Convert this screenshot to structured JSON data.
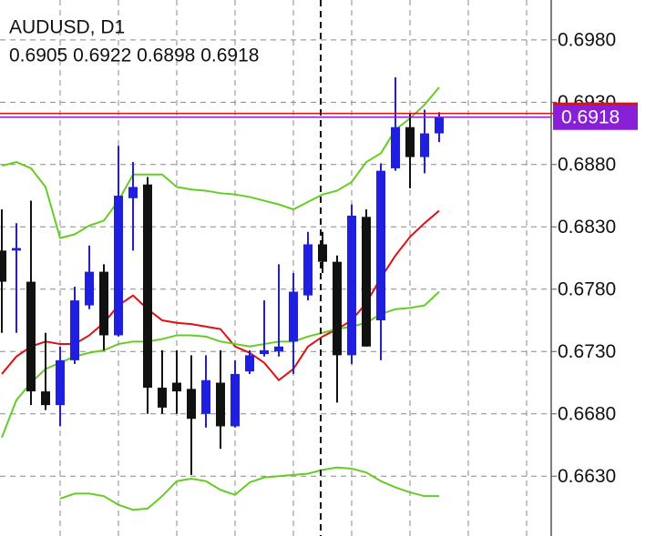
{
  "chart_data": {
    "type": "candlestick",
    "title": "AUDUSD, D1",
    "subtitle": "0.6905 0.6922 0.6898 0.6918",
    "ylim": [
      0.6582,
      0.7012
    ],
    "yticks": [
      {
        "value": 0.663,
        "label": "0.6630"
      },
      {
        "value": 0.668,
        "label": "0.6680"
      },
      {
        "value": 0.673,
        "label": "0.6730"
      },
      {
        "value": 0.678,
        "label": "0.6780"
      },
      {
        "value": 0.683,
        "label": "0.6830"
      },
      {
        "value": 0.688,
        "label": "0.6880"
      },
      {
        "value": 0.693,
        "label": "0.6930"
      },
      {
        "value": 0.698,
        "label": "0.6980"
      }
    ],
    "grid": true,
    "up_color": "#1f1fe0",
    "down_color": "#111111",
    "last_price": 0.6918,
    "last_price_color": "#8a1fd8",
    "ask_price": 0.6921,
    "ask_color": "#e01010",
    "open": [
      0.6811,
      0.6811,
      0.6786,
      0.6698,
      0.6687,
      0.6723,
      0.6767,
      0.6794,
      0.6743,
      0.6853,
      0.6864,
      0.6701,
      0.6705,
      0.67,
      0.668,
      0.6705,
      0.667,
      0.6714,
      0.6728,
      0.673,
      0.6738,
      0.6775,
      0.6816,
      0.6802,
      0.6727,
      0.6838,
      0.6755,
      0.6877,
      0.691,
      0.6886,
      0.6905
    ],
    "high": [
      0.6844,
      0.6833,
      0.6851,
      0.6745,
      0.6734,
      0.6782,
      0.6815,
      0.68,
      0.6895,
      0.6882,
      0.687,
      0.6731,
      0.6731,
      0.6727,
      0.6727,
      0.6731,
      0.6723,
      0.6731,
      0.6771,
      0.68,
      0.6793,
      0.6826,
      0.6826,
      0.6807,
      0.6848,
      0.6844,
      0.6881,
      0.695,
      0.6921,
      0.6924,
      0.6922
    ],
    "low": [
      0.6745,
      0.6745,
      0.6687,
      0.6683,
      0.667,
      0.672,
      0.6764,
      0.6731,
      0.6742,
      0.6811,
      0.668,
      0.668,
      0.668,
      0.6631,
      0.6669,
      0.6652,
      0.6669,
      0.6712,
      0.6726,
      0.6726,
      0.6712,
      0.6771,
      0.6793,
      0.6689,
      0.672,
      0.6734,
      0.6723,
      0.6875,
      0.6861,
      0.6873,
      0.6898
    ],
    "close": [
      0.6786,
      0.6813,
      0.6698,
      0.6687,
      0.6723,
      0.6771,
      0.6794,
      0.6743,
      0.6855,
      0.6862,
      0.6701,
      0.6685,
      0.6698,
      0.6676,
      0.6707,
      0.667,
      0.6712,
      0.6727,
      0.6731,
      0.6734,
      0.6778,
      0.6816,
      0.6802,
      0.6727,
      0.6839,
      0.6734,
      0.6875,
      0.691,
      0.6886,
      0.6905,
      0.6918
    ],
    "lines": [
      {
        "color": "#66cc22",
        "values": [
          0.6879,
          0.6882,
          0.6877,
          0.6862,
          0.6821,
          0.6824,
          0.6831,
          0.6835,
          0.6851,
          0.6872,
          0.6872,
          0.6872,
          0.6862,
          0.686,
          0.6859,
          0.6857,
          0.6856,
          0.6854,
          0.6851,
          0.6848,
          0.6844,
          0.685,
          0.6856,
          0.6859,
          0.6866,
          0.6882,
          0.6889,
          0.6908,
          0.6917,
          0.6928,
          0.6942
        ]
      },
      {
        "color": "#dd1111",
        "values": [
          0.6712,
          0.6726,
          0.6734,
          0.6738,
          0.6736,
          0.6736,
          0.6743,
          0.6753,
          0.6767,
          0.6775,
          0.6764,
          0.6755,
          0.6753,
          0.6752,
          0.675,
          0.6748,
          0.6734,
          0.6729,
          0.6721,
          0.6707,
          0.6716,
          0.6734,
          0.6742,
          0.6748,
          0.6755,
          0.6769,
          0.6789,
          0.6807,
          0.6822,
          0.6833,
          0.6843
        ]
      },
      {
        "color": "#66cc22",
        "values": [
          0.6661,
          0.6691,
          0.6705,
          0.6716,
          0.6721,
          0.6726,
          0.6729,
          0.6731,
          0.6736,
          0.6738,
          0.6738,
          0.674,
          0.6743,
          0.6743,
          0.6742,
          0.6738,
          0.6736,
          0.6734,
          0.6736,
          0.6738,
          0.6738,
          0.6742,
          0.6745,
          0.6748,
          0.675,
          0.6753,
          0.676,
          0.6764,
          0.6765,
          0.6767,
          0.6778
        ]
      },
      {
        "color": "#66cc22",
        "values": [
          null,
          null,
          null,
          null,
          0.6612,
          0.6616,
          0.6616,
          0.6614,
          0.6607,
          0.6603,
          0.6604,
          0.6614,
          0.6626,
          0.6628,
          0.6626,
          0.6619,
          0.6615,
          0.6625,
          0.6629,
          0.663,
          0.6631,
          0.6632,
          0.6635,
          0.6637,
          0.6636,
          0.6633,
          0.6626,
          0.6621,
          0.6617,
          0.6614,
          0.6614
        ]
      }
    ]
  }
}
